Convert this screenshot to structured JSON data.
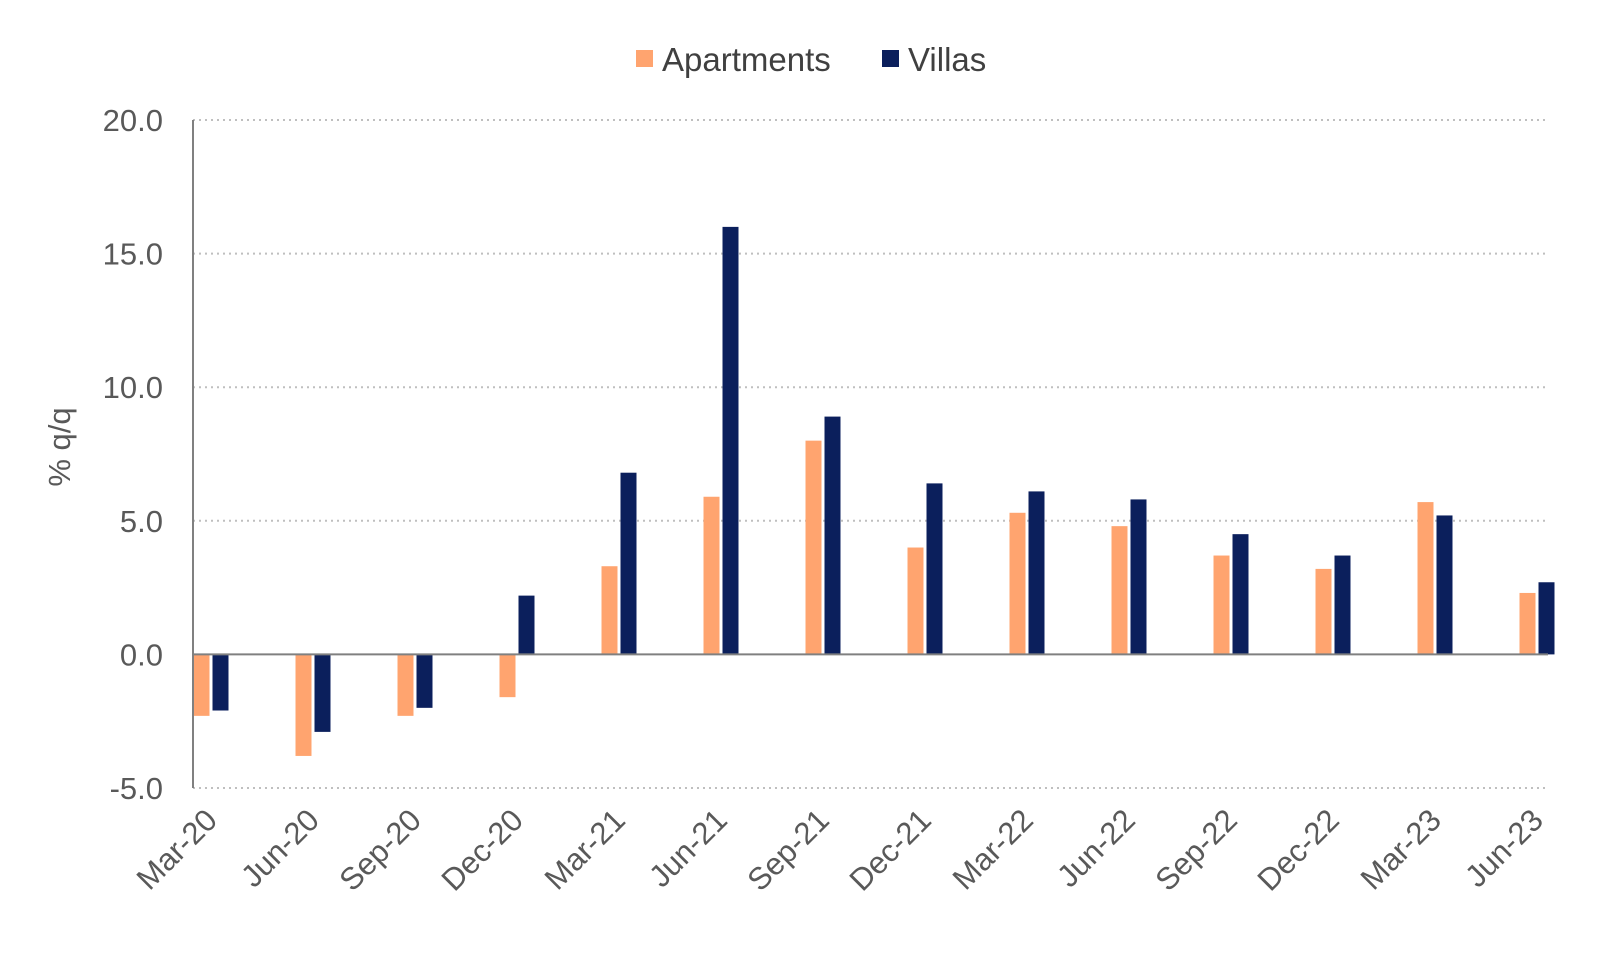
{
  "chart_data": {
    "type": "bar",
    "title": "",
    "xlabel": "",
    "ylabel": "% q/q",
    "ylim": [
      -5,
      20
    ],
    "yticks": [
      -5,
      0,
      5,
      10,
      15,
      20
    ],
    "ytick_format": "1 decimal",
    "grid": "horizontal dotted",
    "legend_position": "top-center",
    "categories": [
      "Mar-20",
      "Jun-20",
      "Sep-20",
      "Dec-20",
      "Mar-21",
      "Jun-21",
      "Sep-21",
      "Dec-21",
      "Mar-22",
      "Jun-22",
      "Sep-22",
      "Dec-22",
      "Mar-23",
      "Jun-23"
    ],
    "series": [
      {
        "name": "Apartments",
        "color": "#FFA46F",
        "values": [
          -2.3,
          -3.8,
          -2.3,
          -1.6,
          3.3,
          5.9,
          8.0,
          4.0,
          5.3,
          4.8,
          3.7,
          3.2,
          5.7,
          2.3
        ]
      },
      {
        "name": "Villas",
        "color": "#0B1F5C",
        "values": [
          -2.1,
          -2.9,
          -2.0,
          2.2,
          6.8,
          16.0,
          8.9,
          6.4,
          6.1,
          5.8,
          4.5,
          3.7,
          5.2,
          2.7
        ]
      }
    ]
  }
}
